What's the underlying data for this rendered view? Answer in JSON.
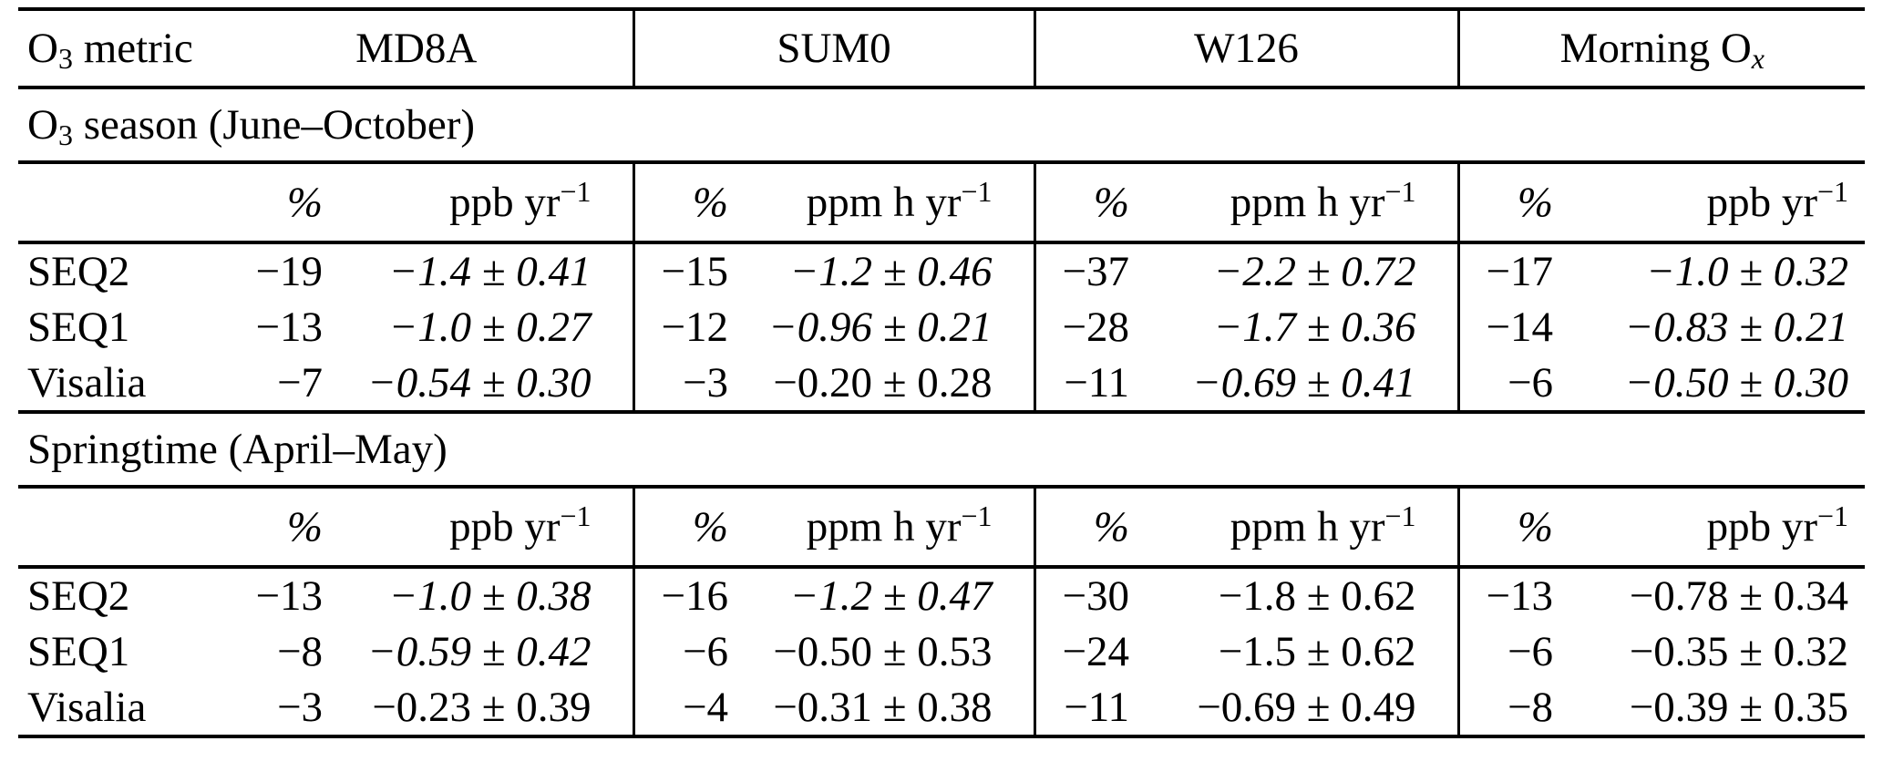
{
  "colors": {
    "text": "#000000",
    "background": "#ffffff",
    "rules": "#000000"
  },
  "table": {
    "corner_label_parts": [
      {
        "text": "O"
      },
      {
        "text": "3",
        "sub": true
      },
      {
        "text": " metric"
      }
    ],
    "percent_symbol": "%",
    "groups": [
      {
        "name_parts": [
          {
            "text": "MD8A"
          }
        ],
        "unit_parts": [
          {
            "text": "ppb yr"
          },
          {
            "text": "−1",
            "sup": true
          }
        ]
      },
      {
        "name_parts": [
          {
            "text": "SUM0"
          }
        ],
        "unit_parts": [
          {
            "text": "ppm h yr"
          },
          {
            "text": "−1",
            "sup": true
          }
        ]
      },
      {
        "name_parts": [
          {
            "text": "W126"
          }
        ],
        "unit_parts": [
          {
            "text": "ppm h yr"
          },
          {
            "text": "−1",
            "sup": true
          }
        ]
      },
      {
        "name_parts": [
          {
            "text": "Morning O"
          },
          {
            "text": "x",
            "sub": true,
            "italic": true
          }
        ],
        "unit_parts": [
          {
            "text": "ppb yr"
          },
          {
            "text": "−1",
            "sup": true
          }
        ]
      }
    ],
    "sections": [
      {
        "title_parts": [
          {
            "text": "O"
          },
          {
            "text": "3",
            "sub": true
          },
          {
            "text": " season (June–October)"
          }
        ],
        "rows": [
          {
            "label": "SEQ2",
            "cells": [
              {
                "pct": "−19",
                "value": "−1.4 ± 0.41",
                "emphasis": "bold-italic"
              },
              {
                "pct": "−15",
                "value": "−1.2 ± 0.46",
                "emphasis": "bold-italic"
              },
              {
                "pct": "−37",
                "value": "−2.2 ± 0.72",
                "emphasis": "bold-italic"
              },
              {
                "pct": "−17",
                "value": "−1.0 ± 0.32",
                "emphasis": "bold-italic"
              }
            ]
          },
          {
            "label": "SEQ1",
            "cells": [
              {
                "pct": "−13",
                "value": "−1.0 ± 0.27",
                "emphasis": "bold-italic"
              },
              {
                "pct": "−12",
                "value": "−0.96 ± 0.21",
                "emphasis": "bold-italic"
              },
              {
                "pct": "−28",
                "value": "−1.7 ± 0.36",
                "emphasis": "bold-italic"
              },
              {
                "pct": "−14",
                "value": "−0.83 ± 0.21",
                "emphasis": "bold-italic"
              }
            ]
          },
          {
            "label": "Visalia",
            "cells": [
              {
                "pct": "−7",
                "value": "−0.54 ± 0.30",
                "emphasis": "italic"
              },
              {
                "pct": "−3",
                "value": "−0.20 ± 0.28",
                "emphasis": "regular"
              },
              {
                "pct": "−11",
                "value": "−0.69 ± 0.41",
                "emphasis": "italic"
              },
              {
                "pct": "−6",
                "value": "−0.50 ± 0.30",
                "emphasis": "italic"
              }
            ]
          }
        ]
      },
      {
        "title_parts": [
          {
            "text": "Springtime (April–May)"
          }
        ],
        "rows": [
          {
            "label": "SEQ2",
            "cells": [
              {
                "pct": "−13",
                "value": "−1.0 ± 0.38",
                "emphasis": "bold-italic"
              },
              {
                "pct": "−16",
                "value": "−1.2 ± 0.47",
                "emphasis": "bold-italic"
              },
              {
                "pct": "−30",
                "value": "−1.8 ± 0.62",
                "emphasis": "bold"
              },
              {
                "pct": "−13",
                "value": "−0.78 ± 0.34",
                "emphasis": "bold"
              }
            ]
          },
          {
            "label": "SEQ1",
            "cells": [
              {
                "pct": "−8",
                "value": "−0.59 ± 0.42",
                "emphasis": "italic"
              },
              {
                "pct": "−6",
                "value": "−0.50 ± 0.53",
                "emphasis": "regular"
              },
              {
                "pct": "−24",
                "value": "−1.5 ± 0.62",
                "emphasis": "bold"
              },
              {
                "pct": "−6",
                "value": "−0.35 ± 0.32",
                "emphasis": "regular"
              }
            ]
          },
          {
            "label": "Visalia",
            "cells": [
              {
                "pct": "−3",
                "value": "−0.23 ± 0.39",
                "emphasis": "regular"
              },
              {
                "pct": "−4",
                "value": "−0.31 ± 0.38",
                "emphasis": "regular"
              },
              {
                "pct": "−11",
                "value": "−0.69 ± 0.49",
                "emphasis": "bold"
              },
              {
                "pct": "−8",
                "value": "−0.39 ± 0.35",
                "emphasis": "regular"
              }
            ]
          }
        ]
      }
    ]
  }
}
